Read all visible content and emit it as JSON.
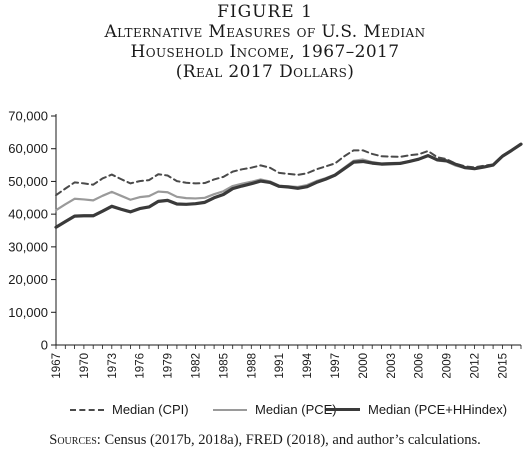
{
  "figure": {
    "label": "FIGURE 1",
    "title_line1": "Alternative Measures of U.S. Median",
    "title_line2": "Household Income, 1967–2017",
    "title_line3": "(Real 2017 Dollars)"
  },
  "source": {
    "label": "Sources:",
    "text": "Census (2017b, 2018a), FRED (2018), and author’s calculations."
  },
  "colors": {
    "cpi": "#4a4a4a",
    "pce": "#9a9a9a",
    "hhindex": "#3a3a3a",
    "axis": "#1a1a1a"
  },
  "chart_data": {
    "type": "line",
    "ylim": [
      0,
      70000
    ],
    "yticks": [
      0,
      10000,
      20000,
      30000,
      40000,
      50000,
      60000,
      70000
    ],
    "ytick_labels": [
      "0",
      "10,000",
      "20,000",
      "30,000",
      "40,000",
      "50,000",
      "60,000",
      "70,000"
    ],
    "xlim": [
      1967,
      2017
    ],
    "xticks": [
      1967,
      1970,
      1973,
      1976,
      1979,
      1982,
      1985,
      1988,
      1991,
      1994,
      1997,
      2000,
      2003,
      2006,
      2009,
      2012,
      2015
    ],
    "x": [
      1967,
      1968,
      1969,
      1970,
      1971,
      1972,
      1973,
      1974,
      1975,
      1976,
      1977,
      1978,
      1979,
      1980,
      1981,
      1982,
      1983,
      1984,
      1985,
      1986,
      1987,
      1988,
      1989,
      1990,
      1991,
      1992,
      1993,
      1994,
      1995,
      1996,
      1997,
      1998,
      1999,
      2000,
      2001,
      2002,
      2003,
      2004,
      2005,
      2006,
      2007,
      2008,
      2009,
      2010,
      2011,
      2012,
      2013,
      2014,
      2015,
      2016,
      2017
    ],
    "legend_position": "bottom",
    "series": [
      {
        "name": "Median (CPI)",
        "style": "dashed",
        "values": [
          45800,
          47800,
          49700,
          49400,
          49000,
          50900,
          52100,
          50700,
          49400,
          50100,
          50400,
          52200,
          51800,
          50100,
          49600,
          49400,
          49500,
          50600,
          51400,
          53000,
          53700,
          54200,
          54900,
          54200,
          52600,
          52300,
          52000,
          52500,
          53700,
          54600,
          55500,
          57700,
          59500,
          59500,
          58400,
          57700,
          57600,
          57500,
          58000,
          58300,
          59300,
          57400,
          56800,
          55400,
          54600,
          54300,
          54800,
          55200,
          57900,
          59500,
          61400
        ]
      },
      {
        "name": "Median (PCE)",
        "style": "solid",
        "values": [
          41200,
          43000,
          44700,
          44500,
          44200,
          45600,
          46800,
          45600,
          44400,
          45200,
          45500,
          46900,
          46700,
          45300,
          44900,
          44800,
          45000,
          46100,
          47000,
          48600,
          49300,
          49900,
          50600,
          50000,
          48700,
          48500,
          48300,
          48900,
          50100,
          51000,
          52100,
          54200,
          56300,
          56700,
          55900,
          55500,
          55600,
          55700,
          56200,
          56700,
          57800,
          56400,
          56100,
          54800,
          54100,
          53900,
          54500,
          55100,
          57800,
          59500,
          61400
        ]
      },
      {
        "name": "Median (PCE+HHindex)",
        "style": "solid-thick",
        "values": [
          36000,
          37700,
          39400,
          39500,
          39500,
          40900,
          42400,
          41500,
          40700,
          41700,
          42200,
          43900,
          44200,
          43100,
          43000,
          43200,
          43600,
          45000,
          46000,
          47800,
          48600,
          49300,
          50100,
          49700,
          48500,
          48300,
          47900,
          48400,
          49700,
          50700,
          51900,
          53900,
          55900,
          56100,
          55600,
          55300,
          55400,
          55500,
          56100,
          56800,
          57900,
          56600,
          56300,
          55200,
          54200,
          53900,
          54400,
          55000,
          57700,
          59500,
          61400
        ]
      }
    ]
  }
}
